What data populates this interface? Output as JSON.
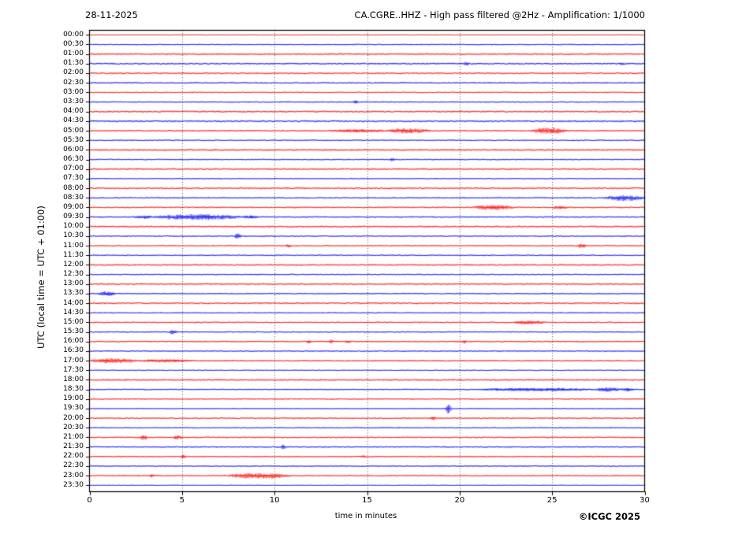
{
  "header": {
    "date": "28-11-2025",
    "title": "CA.CGRE..HHZ - High pass filtered @2Hz - Amplification: 1/1000"
  },
  "axes": {
    "x_label": "time in minutes",
    "y_label": "UTC (local time = UTC + 01:00)",
    "x_ticks": [
      0,
      5,
      10,
      15,
      20,
      25,
      30
    ]
  },
  "credit": "©ICGC 2025",
  "colors": {
    "trace_red": "#ff0000",
    "trace_blue": "#0000ff",
    "grid": "#555555",
    "axis": "#000000",
    "background": "#ffffff"
  },
  "chart_data": {
    "type": "line",
    "subtype": "helicorder-daily-seismogram",
    "title": "CA.CGRE..HHZ - High pass filtered @2Hz - Amplification: 1/1000",
    "date": "28-11-2025",
    "xlabel": "time in minutes",
    "ylabel": "UTC (local time = UTC + 01:00)",
    "xlim": [
      0,
      30
    ],
    "x_ticks": [
      0,
      5,
      10,
      15,
      20,
      25,
      30
    ],
    "grid": "vertical dotted gridlines every 5 minutes",
    "legend_position": "none",
    "row_interval_minutes": 30,
    "rows": [
      {
        "label": "00:00",
        "color": "red",
        "noise": 0.3,
        "events": []
      },
      {
        "label": "00:30",
        "color": "blue",
        "noise": 0.7,
        "events": []
      },
      {
        "label": "01:00",
        "color": "red",
        "noise": 1.2,
        "events": []
      },
      {
        "label": "01:30",
        "color": "blue",
        "noise": 1.2,
        "events": [
          {
            "start": 20.2,
            "end": 20.5,
            "amp": 1.3
          },
          {
            "start": 28.6,
            "end": 28.9,
            "amp": 1.2
          }
        ]
      },
      {
        "label": "02:00",
        "color": "red",
        "noise": 1.2,
        "events": []
      },
      {
        "label": "02:30",
        "color": "blue",
        "noise": 0.9,
        "events": []
      },
      {
        "label": "03:00",
        "color": "red",
        "noise": 0.7,
        "events": []
      },
      {
        "label": "03:30",
        "color": "blue",
        "noise": 0.8,
        "events": [
          {
            "start": 14.2,
            "end": 14.5,
            "amp": 1.4
          }
        ]
      },
      {
        "label": "04:00",
        "color": "red",
        "noise": 1.3,
        "events": []
      },
      {
        "label": "04:30",
        "color": "blue",
        "noise": 1.3,
        "events": []
      },
      {
        "label": "05:00",
        "color": "red",
        "noise": 0.9,
        "events": [
          {
            "start": 12.9,
            "end": 16.0,
            "amp": 1.1
          },
          {
            "start": 16.0,
            "end": 18.4,
            "amp": 2.2
          },
          {
            "start": 23.8,
            "end": 25.8,
            "amp": 3.2
          }
        ]
      },
      {
        "label": "05:30",
        "color": "blue",
        "noise": 0.8,
        "events": []
      },
      {
        "label": "06:00",
        "color": "red",
        "noise": 1.2,
        "events": []
      },
      {
        "label": "06:30",
        "color": "blue",
        "noise": 0.8,
        "events": [
          {
            "start": 16.2,
            "end": 16.5,
            "amp": 1.4
          }
        ]
      },
      {
        "label": "07:00",
        "color": "red",
        "noise": 1.2,
        "events": []
      },
      {
        "label": "07:30",
        "color": "blue",
        "noise": 0.6,
        "events": []
      },
      {
        "label": "08:00",
        "color": "red",
        "noise": 1.2,
        "events": []
      },
      {
        "label": "08:30",
        "color": "blue",
        "noise": 0.9,
        "events": [
          {
            "start": 27.8,
            "end": 30.0,
            "amp": 2.8
          }
        ]
      },
      {
        "label": "09:00",
        "color": "red",
        "noise": 0.9,
        "events": [
          {
            "start": 20.7,
            "end": 22.9,
            "amp": 2.4
          },
          {
            "start": 25.0,
            "end": 25.8,
            "amp": 1.4
          }
        ]
      },
      {
        "label": "09:30",
        "color": "blue",
        "noise": 0.9,
        "events": [
          {
            "start": 2.4,
            "end": 3.4,
            "amp": 1.2
          },
          {
            "start": 3.4,
            "end": 8.2,
            "amp": 2.8
          },
          {
            "start": 8.2,
            "end": 9.2,
            "amp": 1.2
          }
        ]
      },
      {
        "label": "10:00",
        "color": "red",
        "noise": 1.2,
        "events": []
      },
      {
        "label": "10:30",
        "color": "blue",
        "noise": 0.8,
        "events": [
          {
            "start": 7.8,
            "end": 8.2,
            "amp": 2.4
          }
        ]
      },
      {
        "label": "11:00",
        "color": "red",
        "noise": 0.8,
        "events": [
          {
            "start": 10.6,
            "end": 10.9,
            "amp": 1.5
          },
          {
            "start": 26.3,
            "end": 26.8,
            "amp": 2.4
          }
        ]
      },
      {
        "label": "11:30",
        "color": "blue",
        "noise": 0.8,
        "events": []
      },
      {
        "label": "12:00",
        "color": "red",
        "noise": 1.1,
        "events": []
      },
      {
        "label": "12:30",
        "color": "blue",
        "noise": 0.8,
        "events": []
      },
      {
        "label": "13:00",
        "color": "red",
        "noise": 1.1,
        "events": []
      },
      {
        "label": "13:30",
        "color": "blue",
        "noise": 0.8,
        "events": [
          {
            "start": 0.4,
            "end": 1.4,
            "amp": 2.0
          }
        ]
      },
      {
        "label": "14:00",
        "color": "red",
        "noise": 1.2,
        "events": []
      },
      {
        "label": "14:30",
        "color": "blue",
        "noise": 0.7,
        "events": []
      },
      {
        "label": "15:00",
        "color": "red",
        "noise": 0.9,
        "events": [
          {
            "start": 22.9,
            "end": 24.6,
            "amp": 1.4
          }
        ]
      },
      {
        "label": "15:30",
        "color": "blue",
        "noise": 0.8,
        "events": [
          {
            "start": 4.3,
            "end": 4.7,
            "amp": 2.4
          }
        ]
      },
      {
        "label": "16:00",
        "color": "red",
        "noise": 0.9,
        "events": [
          {
            "start": 11.7,
            "end": 12.0,
            "amp": 1.5
          },
          {
            "start": 12.9,
            "end": 13.2,
            "amp": 1.6
          },
          {
            "start": 13.8,
            "end": 14.1,
            "amp": 1.3
          },
          {
            "start": 20.1,
            "end": 20.4,
            "amp": 1.2
          }
        ]
      },
      {
        "label": "16:30",
        "color": "blue",
        "noise": 0.8,
        "events": []
      },
      {
        "label": "17:00",
        "color": "red",
        "noise": 0.9,
        "events": [
          {
            "start": 0.0,
            "end": 2.6,
            "amp": 2.2
          },
          {
            "start": 2.6,
            "end": 5.6,
            "amp": 1.1
          }
        ]
      },
      {
        "label": "17:30",
        "color": "blue",
        "noise": 0.6,
        "events": []
      },
      {
        "label": "18:00",
        "color": "red",
        "noise": 1.1,
        "events": []
      },
      {
        "label": "18:30",
        "color": "blue",
        "noise": 0.8,
        "events": [
          {
            "start": 21.0,
            "end": 27.3,
            "amp": 1.3
          },
          {
            "start": 27.3,
            "end": 28.7,
            "amp": 1.8
          },
          {
            "start": 28.7,
            "end": 29.4,
            "amp": 1.2
          }
        ]
      },
      {
        "label": "19:00",
        "color": "red",
        "noise": 0.7,
        "events": []
      },
      {
        "label": "19:30",
        "color": "blue",
        "noise": 0.5,
        "events": [
          {
            "start": 19.2,
            "end": 19.55,
            "amp": 5.5
          }
        ]
      },
      {
        "label": "20:00",
        "color": "red",
        "noise": 0.9,
        "events": [
          {
            "start": 18.4,
            "end": 18.7,
            "amp": 1.5
          }
        ]
      },
      {
        "label": "20:30",
        "color": "blue",
        "noise": 0.7,
        "events": []
      },
      {
        "label": "21:00",
        "color": "red",
        "noise": 0.9,
        "events": [
          {
            "start": 2.7,
            "end": 3.1,
            "amp": 2.4
          },
          {
            "start": 4.5,
            "end": 5.0,
            "amp": 1.7
          }
        ]
      },
      {
        "label": "21:30",
        "color": "blue",
        "noise": 0.8,
        "events": [
          {
            "start": 10.3,
            "end": 10.6,
            "amp": 2.2
          }
        ]
      },
      {
        "label": "22:00",
        "color": "red",
        "noise": 0.9,
        "events": [
          {
            "start": 4.9,
            "end": 5.2,
            "amp": 1.7
          },
          {
            "start": 14.6,
            "end": 14.9,
            "amp": 1.1
          }
        ]
      },
      {
        "label": "22:30",
        "color": "blue",
        "noise": 0.7,
        "events": []
      },
      {
        "label": "23:00",
        "color": "red",
        "noise": 0.8,
        "events": [
          {
            "start": 3.2,
            "end": 3.5,
            "amp": 1.3
          },
          {
            "start": 7.4,
            "end": 10.9,
            "amp": 2.6
          }
        ]
      },
      {
        "label": "23:30",
        "color": "blue",
        "noise": 0.4,
        "events": []
      }
    ]
  }
}
